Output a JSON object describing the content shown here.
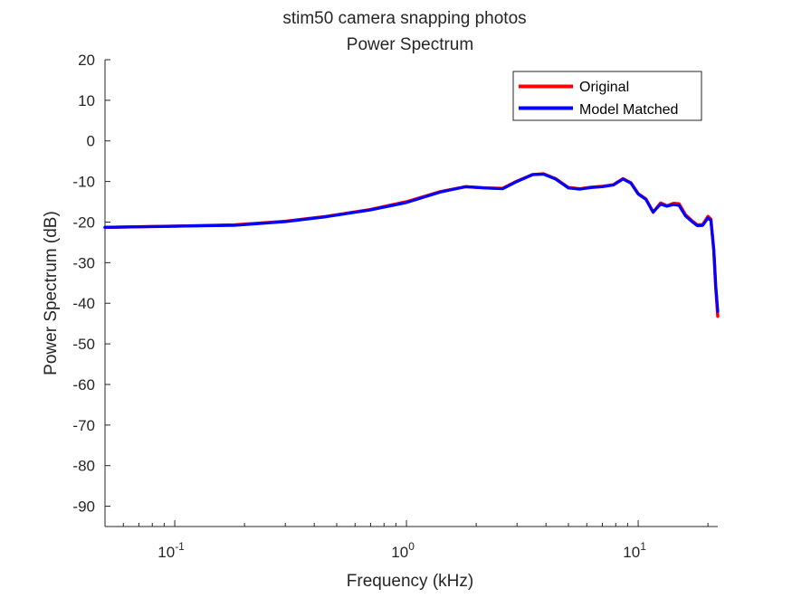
{
  "chart_data": {
    "type": "line",
    "title": [
      "stim50 camera snapping photos",
      "Power Spectrum"
    ],
    "xlabel": "Frequency (kHz)",
    "ylabel": "Power Spectrum (dB)",
    "x_scale": "log",
    "xlim": [
      0.05,
      22.05
    ],
    "ylim": [
      -95,
      20
    ],
    "x_ticks": [
      {
        "value": 0.1,
        "base": "10",
        "exp": "-1"
      },
      {
        "value": 1,
        "base": "10",
        "exp": "0"
      },
      {
        "value": 10,
        "base": "10",
        "exp": "1"
      }
    ],
    "y_ticks": [
      20,
      10,
      0,
      -10,
      -20,
      -30,
      -40,
      -50,
      -60,
      -70,
      -80,
      -90
    ],
    "grid": false,
    "legend_position": "top-right",
    "series": [
      {
        "name": "Original",
        "color": "#ff0000",
        "x": [
          0.05,
          0.1,
          0.18,
          0.3,
          0.45,
          0.7,
          1.0,
          1.4,
          1.8,
          2.2,
          2.6,
          3.0,
          3.5,
          3.9,
          4.4,
          5.0,
          5.6,
          6.3,
          7.0,
          7.8,
          8.6,
          9.3,
          10.0,
          10.8,
          11.6,
          12.5,
          13.3,
          14.2,
          15.0,
          16.0,
          17.0,
          18.0,
          19.0,
          20.0,
          20.6,
          21.2,
          21.6,
          22.05
        ],
        "y": [
          -21.3,
          -21.0,
          -20.7,
          -19.8,
          -18.6,
          -16.9,
          -15.0,
          -12.5,
          -11.3,
          -11.6,
          -11.7,
          -9.9,
          -8.3,
          -8.1,
          -9.3,
          -11.5,
          -11.8,
          -11.4,
          -11.2,
          -10.8,
          -9.3,
          -10.3,
          -13.0,
          -14.3,
          -17.6,
          -15.3,
          -16.0,
          -15.4,
          -15.5,
          -18.2,
          -19.6,
          -20.7,
          -20.6,
          -18.6,
          -19.3,
          -27.0,
          -36.0,
          -43.2
        ]
      },
      {
        "name": "Model Matched",
        "color": "#0000ff",
        "x": [
          0.05,
          0.1,
          0.18,
          0.3,
          0.45,
          0.7,
          1.0,
          1.4,
          1.8,
          2.2,
          2.6,
          3.0,
          3.5,
          3.9,
          4.4,
          5.0,
          5.6,
          6.3,
          7.0,
          7.8,
          8.6,
          9.3,
          10.0,
          10.8,
          11.6,
          12.5,
          13.3,
          14.2,
          15.0,
          16.0,
          17.0,
          18.0,
          19.0,
          20.0,
          20.6,
          21.2,
          21.6,
          22.05
        ],
        "y": [
          -21.3,
          -21.0,
          -20.8,
          -19.9,
          -18.7,
          -17.0,
          -15.2,
          -12.6,
          -11.3,
          -11.6,
          -11.8,
          -10.0,
          -8.3,
          -8.2,
          -9.4,
          -11.6,
          -11.9,
          -11.5,
          -11.3,
          -10.9,
          -9.4,
          -10.4,
          -13.1,
          -14.4,
          -17.5,
          -15.6,
          -16.1,
          -15.7,
          -15.9,
          -18.5,
          -19.8,
          -20.9,
          -20.8,
          -19.0,
          -19.6,
          -26.8,
          -35.5,
          -42.0
        ]
      }
    ]
  }
}
